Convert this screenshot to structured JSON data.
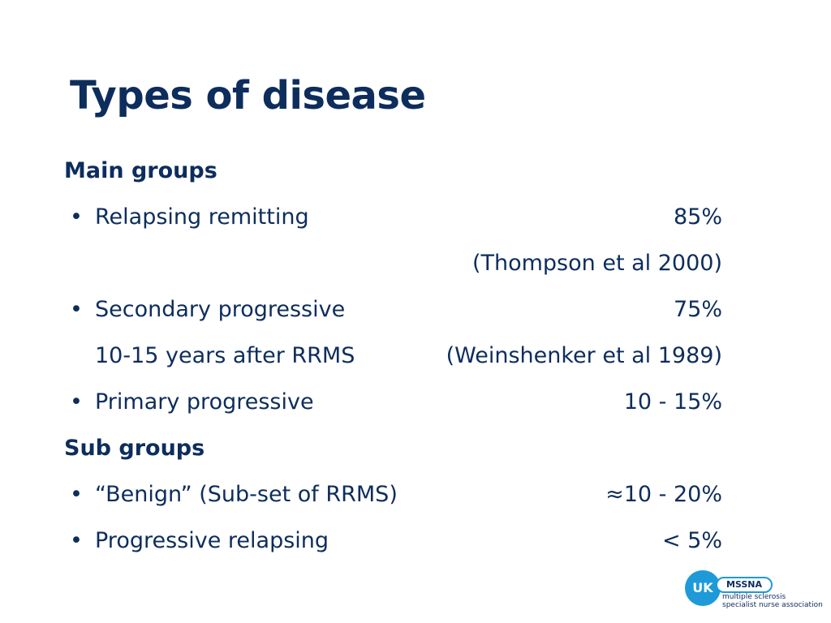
{
  "title": "Types of disease",
  "main_groups": {
    "heading": "Main groups",
    "items": [
      {
        "bullet": "•",
        "label": "Relapsing remitting",
        "value": "85%"
      },
      {
        "bullet": "",
        "label": "",
        "value": "(Thompson et al 2000)"
      },
      {
        "bullet": "•",
        "label": "Secondary progressive",
        "value": "75%"
      },
      {
        "bullet": "",
        "label": "10-15 years after RRMS",
        "value": "(Weinshenker et al 1989)"
      },
      {
        "bullet": "•",
        "label": "Primary progressive",
        "value": "10 - 15%"
      }
    ]
  },
  "sub_groups": {
    "heading": "Sub groups",
    "items": [
      {
        "bullet": "•",
        "label": "“Benign” (Sub-set of RRMS)",
        "value": "≈10 - 20%"
      },
      {
        "bullet": "•",
        "label": "Progressive relapsing",
        "value": "< 5%"
      }
    ]
  },
  "logo": {
    "badge": "UK",
    "name": "MSSNA",
    "line1": "multiple sclerosis",
    "line2": "specialist nurse association"
  },
  "colors": {
    "text": "#0d2d5c",
    "logo_blue": "#1e9ad8",
    "background": "#ffffff"
  }
}
